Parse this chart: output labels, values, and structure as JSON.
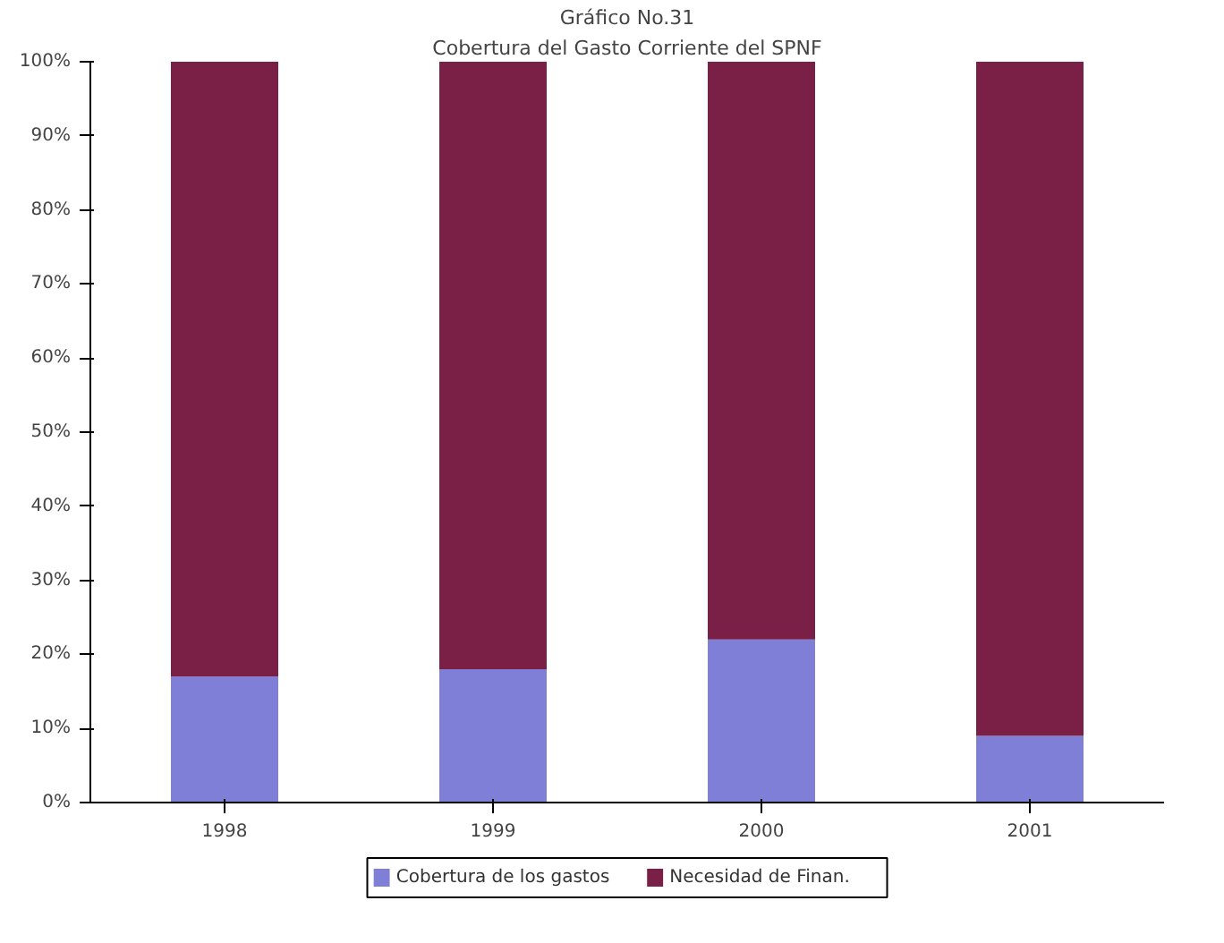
{
  "chart_data": {
    "type": "bar",
    "stacked": true,
    "title": "Gráfico No.31",
    "subtitle": "Cobertura del Gasto Corriente del SPNF",
    "categories": [
      "1998",
      "1999",
      "2000",
      "2001"
    ],
    "series": [
      {
        "name": "Cobertura de los gastos",
        "color": "#7f7fd8",
        "values": [
          17,
          18,
          22,
          9
        ]
      },
      {
        "name": "Necesidad de Finan.",
        "color": "#7a1f45",
        "values": [
          83,
          82,
          78,
          91
        ]
      }
    ],
    "ylim": [
      0,
      100
    ],
    "yticks": [
      {
        "value": 0,
        "label": "0%"
      },
      {
        "value": 10,
        "label": "10%"
      },
      {
        "value": 20,
        "label": "20%"
      },
      {
        "value": 30,
        "label": "30%"
      },
      {
        "value": 40,
        "label": "40%"
      },
      {
        "value": 50,
        "label": "50%"
      },
      {
        "value": 60,
        "label": "60%"
      },
      {
        "value": 70,
        "label": "70%"
      },
      {
        "value": 80,
        "label": "80%"
      },
      {
        "value": 90,
        "label": "90%"
      },
      {
        "value": 100,
        "label": "100%"
      }
    ],
    "grid": false,
    "legend": "bottom"
  }
}
